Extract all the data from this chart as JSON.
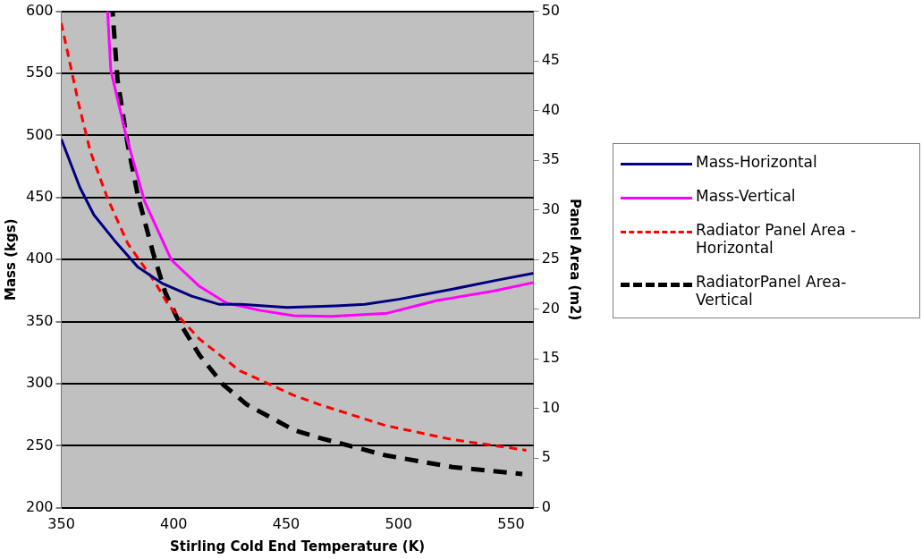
{
  "chart_data": {
    "type": "line",
    "xlabel": "Stirling Cold End Temperature (K)",
    "ylabel": "Mass (kgs)",
    "y2label": "Panel Area (m2)",
    "xlim": [
      350,
      560
    ],
    "xticks": [
      350,
      400,
      450,
      500,
      550
    ],
    "ylim": [
      200,
      600
    ],
    "yticks": [
      200,
      250,
      300,
      350,
      400,
      450,
      500,
      550,
      600
    ],
    "y2lim": [
      0,
      50
    ],
    "y2ticks": [
      0,
      5,
      10,
      15,
      20,
      25,
      30,
      35,
      40,
      45,
      50
    ],
    "grid": "y",
    "legend": "right",
    "marker": "none",
    "series": [
      {
        "name": "Mass-Horizontal",
        "color": "#000080",
        "line_style": "solid",
        "x": [
          350,
          358.3,
          364.5,
          373.5,
          384,
          394.7,
          408,
          420,
          430,
          450.4,
          472,
          485,
          500,
          523.5,
          544,
          560
        ],
        "values": [
          497,
          458,
          436,
          415.7,
          394,
          381,
          370.5,
          364,
          364,
          361.4,
          362.7,
          364,
          368,
          376,
          383.5,
          389
        ]
      },
      {
        "name": "Mass-Vertical",
        "color": "#ff00ff",
        "line_style": "solid",
        "x": [
          370.6,
          372,
          378.8,
          387,
          399,
          411.4,
          423.4,
          438.6,
          453.5,
          470,
          495,
          517,
          542,
          560
        ],
        "values": [
          600,
          552.6,
          500,
          447,
          399.6,
          378.5,
          365,
          359,
          354.8,
          354.3,
          356.8,
          367,
          374.6,
          381.5
        ]
      },
      {
        "name": "Radiator Panel Area - Horizontal",
        "color": "#ff0000",
        "line_style": "dashed",
        "axis": "y2",
        "x": [
          350,
          352.3,
          357.6,
          362.9,
          370.5,
          379.6,
          391.7,
          397.7,
          411.4,
          429.4,
          453.7,
          464.8,
          494,
          523.2,
          556.8
        ],
        "values": [
          48.8,
          46.4,
          40.8,
          35.9,
          31.2,
          26.6,
          22.7,
          20.4,
          17,
          13.8,
          11.3,
          10.4,
          8.3,
          6.9,
          5.8
        ]
      },
      {
        "name": "RadiatorPanel Area-Vertical",
        "color": "#000000",
        "line_style": "dashed",
        "axis": "y2",
        "x": [
          372.8,
          375,
          379.6,
          384,
          390.9,
          396.2,
          402.2,
          411.4,
          422,
          432.5,
          453.7,
          465.6,
          494,
          524,
          555
        ],
        "values": [
          50,
          43.1,
          36.5,
          31.5,
          25.6,
          21.7,
          18.8,
          15.4,
          12.4,
          10.4,
          7.8,
          7,
          5.3,
          4.1,
          3.4
        ]
      }
    ]
  }
}
